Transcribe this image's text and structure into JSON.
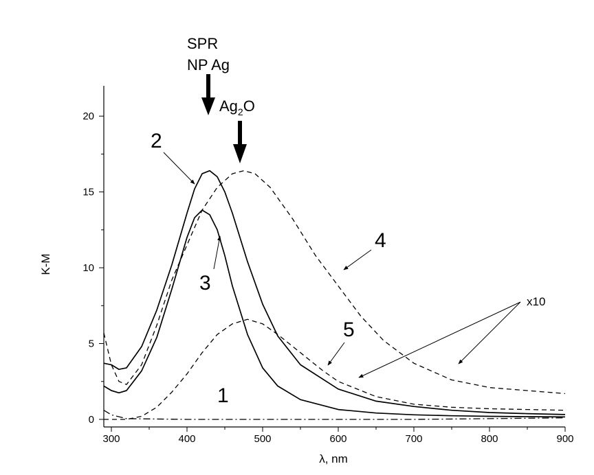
{
  "chart_data": {
    "type": "line",
    "xlabel": "λ, nm",
    "ylabel": "K-M",
    "xlim": [
      290,
      900
    ],
    "ylim": [
      -0.5,
      22
    ],
    "x_ticks": [
      300,
      400,
      500,
      600,
      700,
      800,
      900
    ],
    "y_ticks": [
      0,
      5,
      10,
      15,
      20
    ],
    "grid": false,
    "series": [
      {
        "name": "1",
        "style": "dash-dot",
        "x": [
          290,
          300,
          320,
          400,
          500,
          600,
          700,
          800,
          900
        ],
        "y": [
          0.6,
          0.3,
          0.05,
          0.0,
          0.0,
          0.0,
          0.0,
          0.05,
          0.1
        ]
      },
      {
        "name": "2",
        "style": "solid",
        "x": [
          290,
          300,
          310,
          320,
          340,
          360,
          380,
          400,
          410,
          420,
          430,
          440,
          450,
          460,
          480,
          500,
          520,
          550,
          600,
          650,
          700,
          750,
          800,
          850,
          900
        ],
        "y": [
          3.7,
          3.6,
          3.3,
          3.4,
          4.8,
          7.2,
          10.2,
          13.6,
          15.2,
          16.2,
          16.4,
          16.0,
          15.0,
          13.6,
          10.4,
          7.6,
          5.5,
          3.6,
          2.0,
          1.2,
          0.85,
          0.6,
          0.45,
          0.38,
          0.32
        ]
      },
      {
        "name": "3",
        "style": "solid",
        "x": [
          290,
          300,
          310,
          320,
          340,
          360,
          380,
          400,
          410,
          420,
          430,
          440,
          450,
          460,
          480,
          500,
          520,
          550,
          600,
          650,
          700,
          750,
          800,
          850,
          900
        ],
        "y": [
          2.2,
          1.9,
          1.75,
          1.9,
          3.2,
          5.4,
          8.6,
          12.0,
          13.3,
          13.8,
          13.5,
          12.5,
          10.8,
          8.8,
          5.6,
          3.4,
          2.2,
          1.3,
          0.65,
          0.42,
          0.3,
          0.24,
          0.2,
          0.18,
          0.16
        ]
      },
      {
        "name": "4",
        "style": "dash",
        "x": [
          290,
          300,
          310,
          320,
          340,
          360,
          380,
          400,
          420,
          440,
          460,
          475,
          490,
          510,
          540,
          570,
          600,
          630,
          660,
          700,
          750,
          800,
          850,
          900
        ],
        "y": [
          5.7,
          3.6,
          2.5,
          2.3,
          3.6,
          6.2,
          9.2,
          11.5,
          13.8,
          15.3,
          16.2,
          16.4,
          16.2,
          15.3,
          13.2,
          10.8,
          8.8,
          6.8,
          5.2,
          3.7,
          2.6,
          2.1,
          1.9,
          1.7
        ]
      },
      {
        "name": "5",
        "style": "dash",
        "x": [
          290,
          300,
          310,
          320,
          340,
          360,
          380,
          400,
          420,
          440,
          460,
          480,
          500,
          520,
          550,
          580,
          600,
          650,
          700,
          750,
          800,
          850,
          900
        ],
        "y": [
          0.0,
          0.0,
          0.0,
          0.0,
          0.2,
          0.8,
          1.8,
          3.0,
          4.4,
          5.6,
          6.3,
          6.6,
          6.3,
          5.6,
          4.4,
          3.2,
          2.5,
          1.5,
          1.0,
          0.8,
          0.7,
          0.65,
          0.6
        ]
      }
    ],
    "annotations": {
      "spr_line1": "SPR",
      "spr_line2": "NP Ag",
      "ag2o": "Ag",
      "ag2o_sub": "2",
      "ag2o_o": "O",
      "x10": "x10"
    }
  }
}
